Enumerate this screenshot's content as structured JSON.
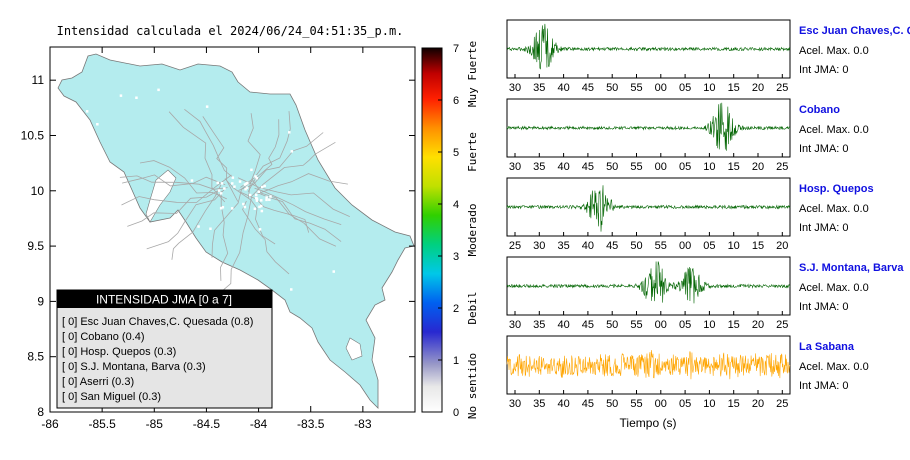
{
  "map": {
    "title": "Intensidad calculada el 2024/06/24_04:51:35_p.m.",
    "xlim": [
      -86,
      -82.5
    ],
    "ylim": [
      8,
      11.3
    ],
    "xticks": [
      "-86",
      "-85.5",
      "-85",
      "-84.5",
      "-84",
      "-83.5",
      "-83"
    ],
    "yticks": [
      "11",
      "10.5",
      "10",
      "9.5",
      "9",
      "8.5",
      "8"
    ],
    "land_color": "#b4ecee",
    "colorbar": {
      "min": 0,
      "max": 7,
      "ticks": [
        "0",
        "1",
        "2",
        "3",
        "4",
        "5",
        "6",
        "7"
      ],
      "labels": [
        "No sentido",
        "Debil",
        "Moderado",
        "Fuerte",
        "Muy Fuerte"
      ]
    }
  },
  "legend": {
    "title": "INTENSIDAD JMA [0 a 7]",
    "items": [
      "[ 0]  Esc Juan Chaves,C. Quesada (0.8)",
      "[ 0]  Cobano (0.4)",
      "[ 0]  Hosp. Quepos (0.3)",
      "[ 0]  S.J. Montana, Barva (0.3)",
      "[ 0]  Aserri (0.3)",
      "[ 0]  San Miguel (0.3)"
    ]
  },
  "chart_data": {
    "type": "line",
    "xlabel": "Tiempo (s)",
    "series": [
      {
        "name": "Esc Juan Chaves,C. Qu",
        "accel_label": "Acel. Max. 0.0",
        "jma_label": "Int JMA: 0",
        "color": "#006400",
        "xticks": [
          "30",
          "35",
          "40",
          "45",
          "50",
          "55",
          "00",
          "05",
          "10",
          "15",
          "20",
          "25"
        ],
        "peaks": [
          {
            "t": 35.0,
            "amp": 1.0
          }
        ]
      },
      {
        "name": "Cobano",
        "accel_label": "Acel. Max. 0.0",
        "jma_label": "Int JMA: 0",
        "color": "#006400",
        "xticks": [
          "30",
          "35",
          "40",
          "45",
          "50",
          "55",
          "00",
          "05",
          "10",
          "15",
          "20",
          "25"
        ],
        "peaks": [
          {
            "t": 75.0,
            "amp": 1.0
          }
        ]
      },
      {
        "name": "Hosp. Quepos",
        "accel_label": "Acel. Max. 0.0",
        "jma_label": "Int JMA: 0",
        "color": "#006400",
        "xticks": [
          "25",
          "30",
          "35",
          "40",
          "45",
          "50",
          "55",
          "00",
          "05",
          "10",
          "15",
          "20"
        ],
        "peaks": [
          {
            "t": 47.5,
            "amp": 1.0
          }
        ]
      },
      {
        "name": "S.J. Montana, Barva",
        "accel_label": "Acel. Max. 0.0",
        "jma_label": "Int JMA: 0",
        "color": "#006400",
        "xticks": [
          "30",
          "35",
          "40",
          "45",
          "50",
          "55",
          "00",
          "05",
          "10",
          "15",
          "20",
          "25"
        ],
        "peaks": [
          {
            "t": 60.0,
            "amp": 1.0
          },
          {
            "t": 68.0,
            "amp": 0.7
          }
        ]
      },
      {
        "name": "La Sabana",
        "accel_label": "Acel. Max. 0.0",
        "jma_label": "Int JMA: 0",
        "color": "#ffa500",
        "xticks": [
          "30",
          "35",
          "40",
          "45",
          "50",
          "55",
          "00",
          "05",
          "10",
          "15",
          "20",
          "25"
        ],
        "peaks": []
      }
    ]
  }
}
